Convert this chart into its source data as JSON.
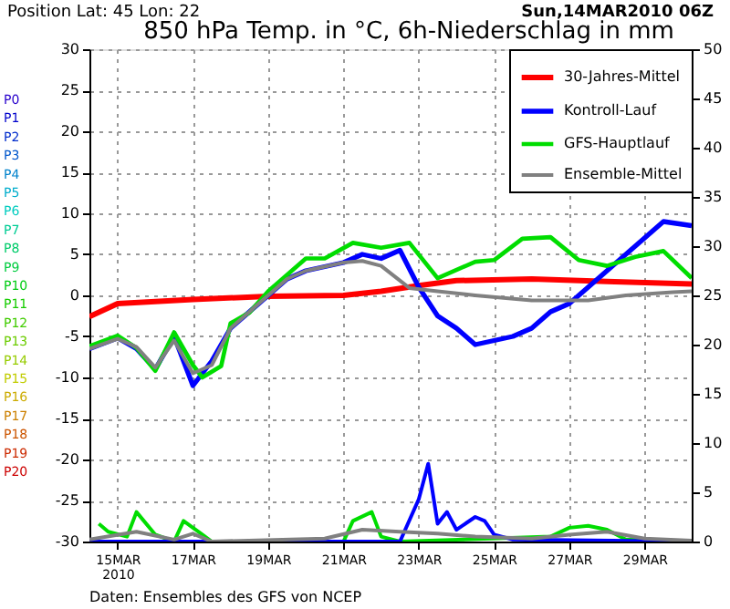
{
  "chart_data": {
    "type": "line",
    "title": "850 hPa Temp. in °C, 6h-Niederschlag in mm",
    "subtitle": "Position  Lat: 45 Lon: 22",
    "annotations": [
      "Sun,14MAR2010 06Z",
      "Daten: Ensembles des GFS von NCEP",
      "P0",
      "P1",
      "P2",
      "P3",
      "P4",
      "P5",
      "P6",
      "P7",
      "P8",
      "P9",
      "P10",
      "P11",
      "P12",
      "P13",
      "P14",
      "P15",
      "P16",
      "P17",
      "P18",
      "P19",
      "P20"
    ],
    "xlim": [
      "2010-03-14T06:00",
      "2010-03-30T06:00"
    ],
    "xticks": [
      {
        "value": "2010-03-15",
        "label": "15MAR\n2010"
      },
      {
        "value": "2010-03-17",
        "label": "17MAR"
      },
      {
        "value": "2010-03-19",
        "label": "19MAR"
      },
      {
        "value": "2010-03-21",
        "label": "21MAR"
      },
      {
        "value": "2010-03-23",
        "label": "23MAR"
      },
      {
        "value": "2010-03-25",
        "label": "25MAR"
      },
      {
        "value": "2010-03-27",
        "label": "27MAR"
      },
      {
        "value": "2010-03-29",
        "label": "29MAR"
      }
    ],
    "ylim": [
      -30,
      30
    ],
    "yticks": [
      -30,
      -25,
      -20,
      -15,
      -10,
      -5,
      0,
      5,
      10,
      15,
      20,
      25,
      30
    ],
    "y2lim": [
      0,
      50
    ],
    "y2ticks": [
      0,
      5,
      10,
      15,
      20,
      25,
      30,
      35,
      40,
      45,
      50
    ],
    "grid": true,
    "legend": "top right",
    "line_style": "solid",
    "series": [
      {
        "name": "30-Jahres-Mittel",
        "color": "#ff0000",
        "x": [
          "2010-03-14T06:00",
          "2010-03-15T00:00",
          "2010-03-17T00:00",
          "2010-03-19T00:00",
          "2010-03-21T00:00",
          "2010-03-22T00:00",
          "2010-03-23T00:00",
          "2010-03-24T00:00",
          "2010-03-26T00:00",
          "2010-03-28T00:00",
          "2010-03-30T06:00"
        ],
        "values": [
          -2.6,
          -1.0,
          -0.5,
          -0.1,
          0.0,
          0.5,
          1.2,
          1.8,
          2.0,
          1.7,
          1.4
        ]
      },
      {
        "name": "Kontroll-Lauf",
        "color": "#0000ff",
        "x": [
          "2010-03-14T06:00",
          "2010-03-15T00:00",
          "2010-03-15T12:00",
          "2010-03-16T00:00",
          "2010-03-16T12:00",
          "2010-03-17T00:00",
          "2010-03-17T12:00",
          "2010-03-18T00:00",
          "2010-03-18T12:00",
          "2010-03-19T00:00",
          "2010-03-19T12:00",
          "2010-03-20T00:00",
          "2010-03-20T12:00",
          "2010-03-21T00:00",
          "2010-03-21T12:00",
          "2010-03-22T00:00",
          "2010-03-22T12:00",
          "2010-03-23T00:00",
          "2010-03-23T12:00",
          "2010-03-24T00:00",
          "2010-03-24T12:00",
          "2010-03-25T00:00",
          "2010-03-25T12:00",
          "2010-03-26T00:00",
          "2010-03-26T12:00",
          "2010-03-27T00:00",
          "2010-03-27T12:00",
          "2010-03-28T00:00",
          "2010-03-28T12:00",
          "2010-03-29T00:00",
          "2010-03-29T12:00",
          "2010-03-30T06:00"
        ],
        "values": [
          -6.5,
          -5.2,
          -6.5,
          -9,
          -5,
          -11,
          -8,
          -4,
          -2,
          0,
          2,
          3,
          3.5,
          4,
          5,
          4.5,
          5.5,
          1,
          -2.5,
          -4,
          -6,
          -5.5,
          -5,
          -4,
          -2,
          -1,
          1,
          3,
          5,
          7,
          9,
          8.5
        ]
      },
      {
        "name": "GFS-Hauptlauf",
        "color": "#00dd00",
        "x": [
          "2010-03-14T06:00",
          "2010-03-15T00:00",
          "2010-03-15T12:00",
          "2010-03-16T00:00",
          "2010-03-16T12:00",
          "2010-03-17T00:00",
          "2010-03-17T06:00",
          "2010-03-17T18:00",
          "2010-03-18T00:00",
          "2010-03-18T12:00",
          "2010-03-19T00:00",
          "2010-03-19T12:00",
          "2010-03-20T00:00",
          "2010-03-20T12:00",
          "2010-03-21T06:00",
          "2010-03-22T00:00",
          "2010-03-22T18:00",
          "2010-03-23T12:00",
          "2010-03-24T12:00",
          "2010-03-25T00:00",
          "2010-03-25T18:00",
          "2010-03-26T12:00",
          "2010-03-27T06:00",
          "2010-03-28T00:00",
          "2010-03-28T18:00",
          "2010-03-29T12:00",
          "2010-03-30T06:00"
        ],
        "values": [
          -6.2,
          -4.9,
          -6.4,
          -9.2,
          -4.5,
          -8.5,
          -10,
          -8.6,
          -3.4,
          -2.1,
          0.5,
          2.5,
          4.5,
          4.5,
          6.4,
          5.8,
          6.4,
          2.1,
          4.1,
          4.3,
          6.9,
          7.1,
          4.3,
          3.6,
          4.7,
          5.4,
          2.1
        ]
      },
      {
        "name": "Ensemble-Mittel",
        "color": "#808080",
        "x": [
          "2010-03-14T06:00",
          "2010-03-15T00:00",
          "2010-03-15T12:00",
          "2010-03-16T00:00",
          "2010-03-16T12:00",
          "2010-03-17T00:00",
          "2010-03-17T12:00",
          "2010-03-18T00:00",
          "2010-03-18T12:00",
          "2010-03-19T00:00",
          "2010-03-19T12:00",
          "2010-03-20T00:00",
          "2010-03-20T12:00",
          "2010-03-21T00:00",
          "2010-03-21T12:00",
          "2010-03-22T00:00",
          "2010-03-22T18:00",
          "2010-03-23T12:00",
          "2010-03-24T12:00",
          "2010-03-26T00:00",
          "2010-03-27T12:00",
          "2010-03-28T12:00",
          "2010-03-29T18:00",
          "2010-03-30T06:00"
        ],
        "values": [
          -6.5,
          -5.3,
          -6.3,
          -8.8,
          -5.5,
          -9.5,
          -8.5,
          -4,
          -2,
          0,
          2,
          3,
          3.5,
          4,
          4.2,
          3.6,
          0.9,
          0.5,
          0,
          -0.6,
          -0.6,
          0,
          0.4,
          0.5
        ]
      },
      {
        "axis": "y2",
        "color": "#00dd00",
        "x": [
          "2010-03-14T12:00",
          "2010-03-14T18:00",
          "2010-03-15T06:00",
          "2010-03-15T12:00",
          "2010-03-16T00:00",
          "2010-03-16T12:00",
          "2010-03-16T18:00",
          "2010-03-17T06:00",
          "2010-03-17T12:00",
          "2010-03-21T00:00",
          "2010-03-21T06:00",
          "2010-03-21T18:00",
          "2010-03-22T00:00",
          "2010-03-22T12:00",
          "2010-03-26T12:00",
          "2010-03-27T00:00",
          "2010-03-27T12:00",
          "2010-03-28T00:00",
          "2010-03-28T12:00",
          "2010-03-30T06:00"
        ],
        "values": [
          1.8,
          1.0,
          0.5,
          3.0,
          0.7,
          0.0,
          2.1,
          0.7,
          0,
          0,
          2.1,
          3.0,
          0.5,
          0,
          0.5,
          1.4,
          1.6,
          1.2,
          0.2,
          0
        ]
      },
      {
        "axis": "y2",
        "color": "#0000ff",
        "x": [
          "2010-03-14T06:00",
          "2010-03-22T12:00",
          "2010-03-23T00:00",
          "2010-03-23T06:00",
          "2010-03-23T12:00",
          "2010-03-23T18:00",
          "2010-03-24T00:00",
          "2010-03-24T12:00",
          "2010-03-24T18:00",
          "2010-03-25T00:00",
          "2010-03-25T12:00",
          "2010-03-30T06:00"
        ],
        "values": [
          0,
          0,
          4.3,
          7.9,
          1.8,
          3.0,
          1.2,
          2.5,
          2.1,
          0.7,
          0.2,
          0
        ]
      },
      {
        "axis": "y2",
        "color": "#808080",
        "x": [
          "2010-03-14T06:00",
          "2010-03-15T12:00",
          "2010-03-16T12:00",
          "2010-03-17T00:00",
          "2010-03-17T12:00",
          "2010-03-20T12:00",
          "2010-03-21T12:00",
          "2010-03-22T12:00",
          "2010-03-23T12:00",
          "2010-03-24T12:00",
          "2010-03-26T00:00",
          "2010-03-27T00:00",
          "2010-03-28T00:00",
          "2010-03-29T00:00",
          "2010-03-30T06:00"
        ],
        "values": [
          0.2,
          1.0,
          0.2,
          0.8,
          0,
          0.3,
          1.2,
          1.0,
          0.8,
          0.5,
          0.3,
          0.7,
          1.0,
          0.3,
          0.1
        ]
      }
    ]
  }
}
